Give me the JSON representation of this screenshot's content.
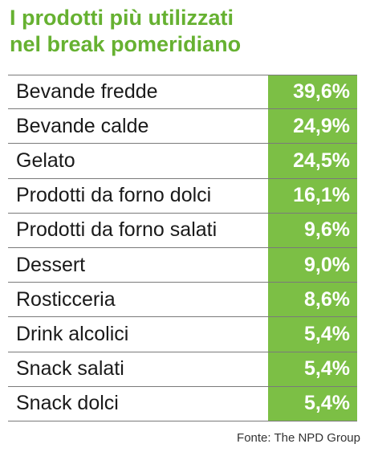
{
  "chart_data": {
    "type": "table",
    "title": "I prodotti più utilizzati nel break pomeridiano",
    "title_lines": [
      "I prodotti più utilizzati",
      "nel break pomeridiano"
    ],
    "unit": "%",
    "accent_color": "#7cbf45",
    "title_color": "#66b131",
    "rows": [
      {
        "label": "Bevande fredde",
        "value": 39.6,
        "display": "39,6%"
      },
      {
        "label": "Bevande calde",
        "value": 24.9,
        "display": "24,9%"
      },
      {
        "label": "Gelato",
        "value": 24.5,
        "display": "24,5%"
      },
      {
        "label": "Prodotti da forno dolci",
        "value": 16.1,
        "display": "16,1%"
      },
      {
        "label": "Prodotti da forno salati",
        "value": 9.6,
        "display": "9,6%"
      },
      {
        "label": "Dessert",
        "value": 9.0,
        "display": "9,0%"
      },
      {
        "label": "Rosticceria",
        "value": 8.6,
        "display": "8,6%"
      },
      {
        "label": "Drink alcolici",
        "value": 5.4,
        "display": "5,4%"
      },
      {
        "label": "Snack salati",
        "value": 5.4,
        "display": "5,4%"
      },
      {
        "label": "Snack dolci",
        "value": 5.4,
        "display": "5,4%"
      }
    ],
    "source": "Fonte: The NPD Group"
  }
}
